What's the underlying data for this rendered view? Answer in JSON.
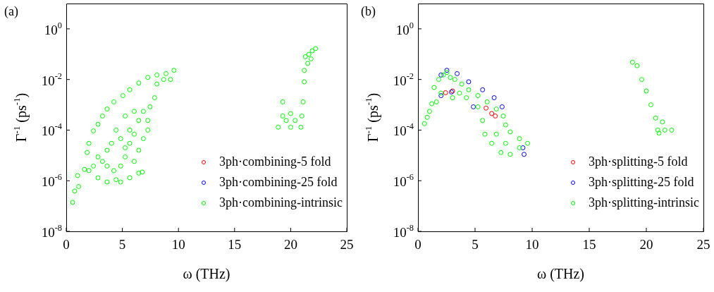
{
  "chart_data": [
    {
      "type": "scatter",
      "title": "(a)",
      "xlabel": "ω (THz)",
      "ylabel": "Γ$^{-1}$ (ps$^{-1}$)",
      "log": "y",
      "grid": false,
      "legend": "bottom right",
      "marker": "circle",
      "xlim": [
        0,
        25
      ],
      "xticks": [
        0,
        5,
        10,
        15,
        20,
        25
      ],
      "ylim": [
        1e-08,
        10
      ],
      "yticks": [
        {
          "value": 1e-08,
          "label": "10$^{-8}$"
        },
        {
          "value": 1e-06,
          "label": "10$^{-6}$"
        },
        {
          "value": 0.0001,
          "label": "10$^{-4}$"
        },
        {
          "value": 0.01,
          "label": "10$^{-2}$"
        },
        {
          "value": 1,
          "label": "10$^{0}$"
        }
      ],
      "series": [
        {
          "name": "3ph·combining-5 fold",
          "color": "#ff0000"
        },
        {
          "name": "3ph·combining-25 fold",
          "color": "#0000ff"
        },
        {
          "name": "3ph·combining-intrinsic",
          "color": "#00ff00",
          "x": [
            0.57,
            0.75,
            1.11,
            1.01,
            1.62,
            1.86,
            2.02,
            2.42,
            2.83,
            3.23,
            3.64,
            4.24,
            5.05,
            5.66,
            6.46,
            7.27,
            8.08,
            8.89,
            9.6,
            9.29,
            8.69,
            8.08,
            7.88,
            7.47,
            7.27,
            6.87,
            6.46,
            6.06,
            5.66,
            5.25,
            4.85,
            4.44,
            4.04,
            3.64,
            3.23,
            2.83,
            2.42,
            2.02,
            2.83,
            3.64,
            4.44,
            4.85,
            5.66,
            6.46,
            6.77,
            6.06,
            5.25,
            4.85,
            4.24,
            3.64,
            6.46,
            7.27,
            6.87,
            5.66,
            6.06,
            5.25,
            18.89,
            19.29,
            19.29,
            19.6,
            20.0,
            20.4,
            20.91,
            20.0,
            21.0,
            21.11,
            21.21,
            21.21,
            21.31,
            21.62,
            21.92,
            22.22,
            21.52,
            21.82
          ],
          "values": [
            1.4e-07,
            3.9e-07,
            5.9e-07,
            1.6e-06,
            2.8e-06,
            1.3e-05,
            3e-05,
            9.3e-05,
            0.00017,
            0.00036,
            0.00068,
            0.0013,
            0.0023,
            0.0039,
            0.0072,
            0.012,
            0.015,
            0.017,
            0.023,
            0.01,
            0.01,
            0.0066,
            0.0019,
            0.00083,
            0.00024,
            0.00055,
            0.00024,
            0.00055,
            0.0001,
            0.00036,
            4.6e-05,
            0.0001,
            3e-05,
            1.6e-05,
            5.8e-06,
            8.7e-06,
            3.8e-06,
            2.5e-06,
            1.3e-06,
            8.9e-07,
            1.1e-06,
            8.9e-07,
            1.3e-06,
            2e-06,
            2.2e-06,
            5.8e-06,
            8.7e-06,
            3.8e-06,
            2.5e-06,
            3.8e-06,
            1.6e-05,
            0.0001,
            4.6e-05,
            3e-05,
            6.9e-05,
            2e-05,
            0.00013,
            0.0013,
            0.00036,
            0.00024,
            0.00045,
            0.00024,
            0.00013,
            0.00013,
            0.00036,
            0.0013,
            0.0081,
            0.023,
            0.079,
            0.098,
            0.135,
            0.166,
            0.043,
            0.065
          ]
        }
      ]
    },
    {
      "type": "scatter",
      "title": "(b)",
      "xlabel": "ω (THz)",
      "ylabel": "Γ$^{-1}$ (ps$^{-1}$)",
      "log": "y",
      "grid": false,
      "legend": "bottom right",
      "marker": "circle",
      "xlim": [
        0,
        25
      ],
      "xticks": [
        0,
        5,
        10,
        15,
        20,
        25
      ],
      "ylim": [
        1e-08,
        10
      ],
      "yticks": [
        {
          "value": 1e-08,
          "label": "10$^{-8}$"
        },
        {
          "value": 1e-06,
          "label": "10$^{-6}$"
        },
        {
          "value": 0.0001,
          "label": "10$^{-4}$"
        },
        {
          "value": 0.01,
          "label": "10$^{-2}$"
        },
        {
          "value": 1,
          "label": "10$^{0}$"
        }
      ],
      "series": [
        {
          "name": "3ph·splitting-5 fold",
          "color": "#ff0000",
          "x": [
            5.96,
            6.46,
            6.77,
            3.03,
            2.42
          ],
          "values": [
            0.00074,
            0.00045,
            0.00036,
            0.0035,
            0.003
          ]
        },
        {
          "name": "3ph·splitting-25 fold",
          "color": "#0000ff",
          "x": [
            2.02,
            2.53,
            3.43,
            4.44,
            5.66,
            6.67,
            7.37,
            4.85,
            2.93,
            2.02,
            9.19,
            9.29
          ],
          "values": [
            0.015,
            0.023,
            0.017,
            0.0081,
            0.0039,
            0.0019,
            0.00083,
            0.00083,
            0.0032,
            0.0023,
            2e-05,
            1.1e-05
          ]
        },
        {
          "name": "3ph·splitting-intrinsic",
          "color": "#00ff00",
          "x": [
            0.57,
            0.81,
            1.01,
            1.21,
            1.62,
            1.41,
            1.82,
            2.22,
            2.53,
            2.83,
            3.23,
            3.84,
            4.44,
            5.25,
            6.06,
            6.87,
            7.47,
            7.68,
            8.08,
            8.89,
            9.6,
            8.89,
            8.08,
            7.27,
            6.46,
            5.86,
            5.66,
            5.25,
            4.24,
            3.64,
            3.03,
            2.02,
            6.87,
            7.68,
            18.79,
            19.19,
            19.6,
            20.0,
            20.4,
            20.81,
            21.0,
            21.11,
            21.41,
            21.62,
            22.22
          ],
          "values": [
            0.00018,
            0.00032,
            0.00055,
            0.0011,
            0.0013,
            0.0048,
            0.01,
            0.015,
            0.019,
            0.012,
            0.01,
            0.0066,
            0.0039,
            0.0023,
            0.0013,
            0.00068,
            0.00036,
            0.00016,
            8.5e-05,
            4.6e-05,
            3e-05,
            2e-05,
            1.1e-05,
            1.3e-05,
            3e-05,
            6.9e-05,
            0.00024,
            0.00083,
            0.0019,
            0.0029,
            0.0019,
            0.0029,
            6.9e-05,
            3e-05,
            0.048,
            0.035,
            0.01,
            0.0035,
            0.001,
            0.0003,
            0.0001,
            7.6e-05,
            0.00021,
            0.0001,
            0.0001
          ]
        }
      ]
    }
  ]
}
